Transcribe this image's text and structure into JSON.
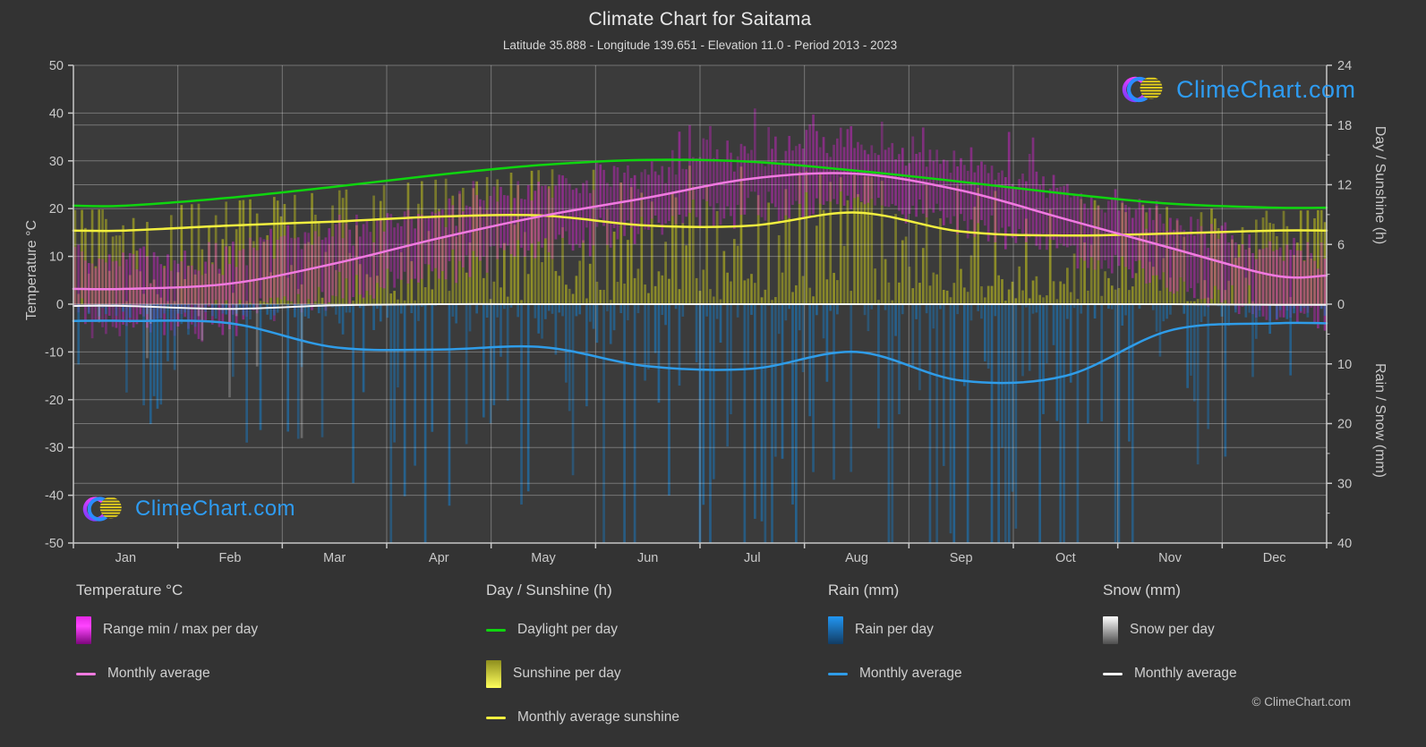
{
  "page": {
    "title": "Climate Chart for Saitama",
    "subtitle": "Latitude 35.888 - Longitude 139.651 - Elevation 11.0 - Period 2013 - 2023",
    "copyright": "© ClimeChart.com",
    "watermark_text": "ClimeChart.com"
  },
  "axes": {
    "left": {
      "title": "Temperature °C",
      "ticks": [
        50,
        40,
        30,
        20,
        10,
        0,
        -10,
        -20,
        -30,
        -40,
        -50
      ]
    },
    "right_sun": {
      "title": "Day / Sunshine (h)",
      "ticks": [
        24,
        18,
        12,
        6,
        0
      ],
      "minor_ticks": [
        21,
        15,
        9,
        3
      ]
    },
    "right_rain": {
      "title": "Rain / Snow (mm)",
      "ticks": [
        10,
        20,
        30,
        40
      ],
      "minor_ticks": [
        5,
        15,
        25,
        35
      ]
    },
    "x": {
      "labels": [
        "Jan",
        "Feb",
        "Mar",
        "Apr",
        "May",
        "Jun",
        "Jul",
        "Aug",
        "Sep",
        "Oct",
        "Nov",
        "Dec"
      ]
    }
  },
  "legend": {
    "columns": [
      {
        "header": "Temperature °C",
        "items": [
          {
            "swatch": "gradient-magenta",
            "label": "Range min / max per day"
          },
          {
            "swatch": "line-pink",
            "label": "Monthly average"
          }
        ]
      },
      {
        "header": "Day / Sunshine (h)",
        "items": [
          {
            "swatch": "line-green",
            "label": "Daylight per day"
          },
          {
            "swatch": "gradient-yellow",
            "label": "Sunshine per day"
          },
          {
            "swatch": "line-yellow",
            "label": "Monthly average sunshine"
          }
        ]
      },
      {
        "header": "Rain (mm)",
        "items": [
          {
            "swatch": "gradient-blue",
            "label": "Rain per day"
          },
          {
            "swatch": "line-blue",
            "label": "Monthly average"
          }
        ]
      },
      {
        "header": "Snow (mm)",
        "items": [
          {
            "swatch": "gradient-gray",
            "label": "Snow per day"
          },
          {
            "swatch": "line-white",
            "label": "Monthly average"
          }
        ]
      }
    ]
  },
  "colors": {
    "page_bg": "#333333",
    "plot_bg": "#3b3b3b",
    "grid": "#ffffff",
    "axis": "#c8c8c8",
    "daylight_line": "#0fd50f",
    "sunshine_line": "#f2ef3f",
    "temp_line": "#f07ae0",
    "rain_line": "#2f9ce8",
    "snow_line": "#f5f5f5",
    "temp_bar": "210,35,205",
    "sun_bar": "205,205,25",
    "rain_bar": "28,115,180",
    "snow_bar": "225,225,225",
    "logo_text": "#2e9cf2"
  },
  "chart_data": {
    "type": "climate-composite",
    "title": "Climate Chart for Saitama",
    "months": [
      "Jan",
      "Feb",
      "Mar",
      "Apr",
      "May",
      "Jun",
      "Jul",
      "Aug",
      "Sep",
      "Oct",
      "Nov",
      "Dec"
    ],
    "axis_ranges": {
      "temperature_c": [
        -50,
        50
      ],
      "day_sunshine_h": [
        0,
        24
      ],
      "rain_snow_mm": [
        0,
        40
      ],
      "note": "0 h and 0 mm share the 0 °C line; sunshine plotted above, rain/snow inverted below"
    },
    "series": [
      {
        "name": "Daylight per day",
        "unit": "h",
        "type": "line",
        "color": "#0fd50f",
        "values": [
          9.9,
          10.7,
          11.8,
          13.0,
          14.0,
          14.5,
          14.3,
          13.4,
          12.3,
          11.1,
          10.1,
          9.7
        ]
      },
      {
        "name": "Monthly average sunshine",
        "unit": "h",
        "type": "line",
        "color": "#f2ef3f",
        "values": [
          7.4,
          7.9,
          8.3,
          8.8,
          8.9,
          7.9,
          7.9,
          9.2,
          7.3,
          6.9,
          7.1,
          7.4
        ]
      },
      {
        "name": "Monthly average temperature",
        "unit": "°C",
        "type": "line",
        "color": "#f07ae0",
        "values": [
          3.2,
          4.3,
          8.5,
          13.8,
          18.5,
          22.3,
          26.3,
          27.3,
          23.8,
          17.8,
          11.8,
          6.0
        ]
      },
      {
        "name": "Typical daily max temperature",
        "unit": "°C",
        "type": "bar-top",
        "color": "#d223cd",
        "values": [
          9.5,
          10.5,
          14.5,
          19.5,
          24.0,
          26.5,
          30.5,
          32.0,
          28.0,
          22.0,
          16.5,
          11.5
        ]
      },
      {
        "name": "Typical daily min temperature",
        "unit": "°C",
        "type": "bar-bottom",
        "color": "#d223cd",
        "values": [
          -2.5,
          -1.5,
          2.5,
          8.5,
          13.5,
          18.5,
          23.0,
          24.0,
          20.0,
          13.5,
          6.5,
          0.5
        ]
      },
      {
        "name": "Monthly average rain",
        "unit": "mm/day",
        "type": "line",
        "color": "#2f9ce8",
        "values": [
          2.8,
          3.2,
          7.2,
          7.6,
          7.2,
          10.4,
          10.8,
          8.0,
          12.8,
          12.0,
          4.4,
          3.2
        ]
      },
      {
        "name": "Monthly average snow",
        "unit": "mm/day",
        "type": "line",
        "color": "#f5f5f5",
        "values": [
          0.3,
          0.8,
          0.2,
          0,
          0,
          0,
          0,
          0,
          0,
          0,
          0,
          0.1
        ]
      }
    ],
    "generator_hints": {
      "rain_probability": [
        0.35,
        0.38,
        0.5,
        0.52,
        0.52,
        0.62,
        0.58,
        0.5,
        0.62,
        0.55,
        0.4,
        0.33
      ],
      "snow_probability": [
        0.12,
        0.15,
        0.05,
        0,
        0,
        0,
        0,
        0,
        0,
        0,
        0,
        0.03
      ],
      "seed": 20230613
    },
    "grid": true,
    "legend_position": "bottom"
  }
}
